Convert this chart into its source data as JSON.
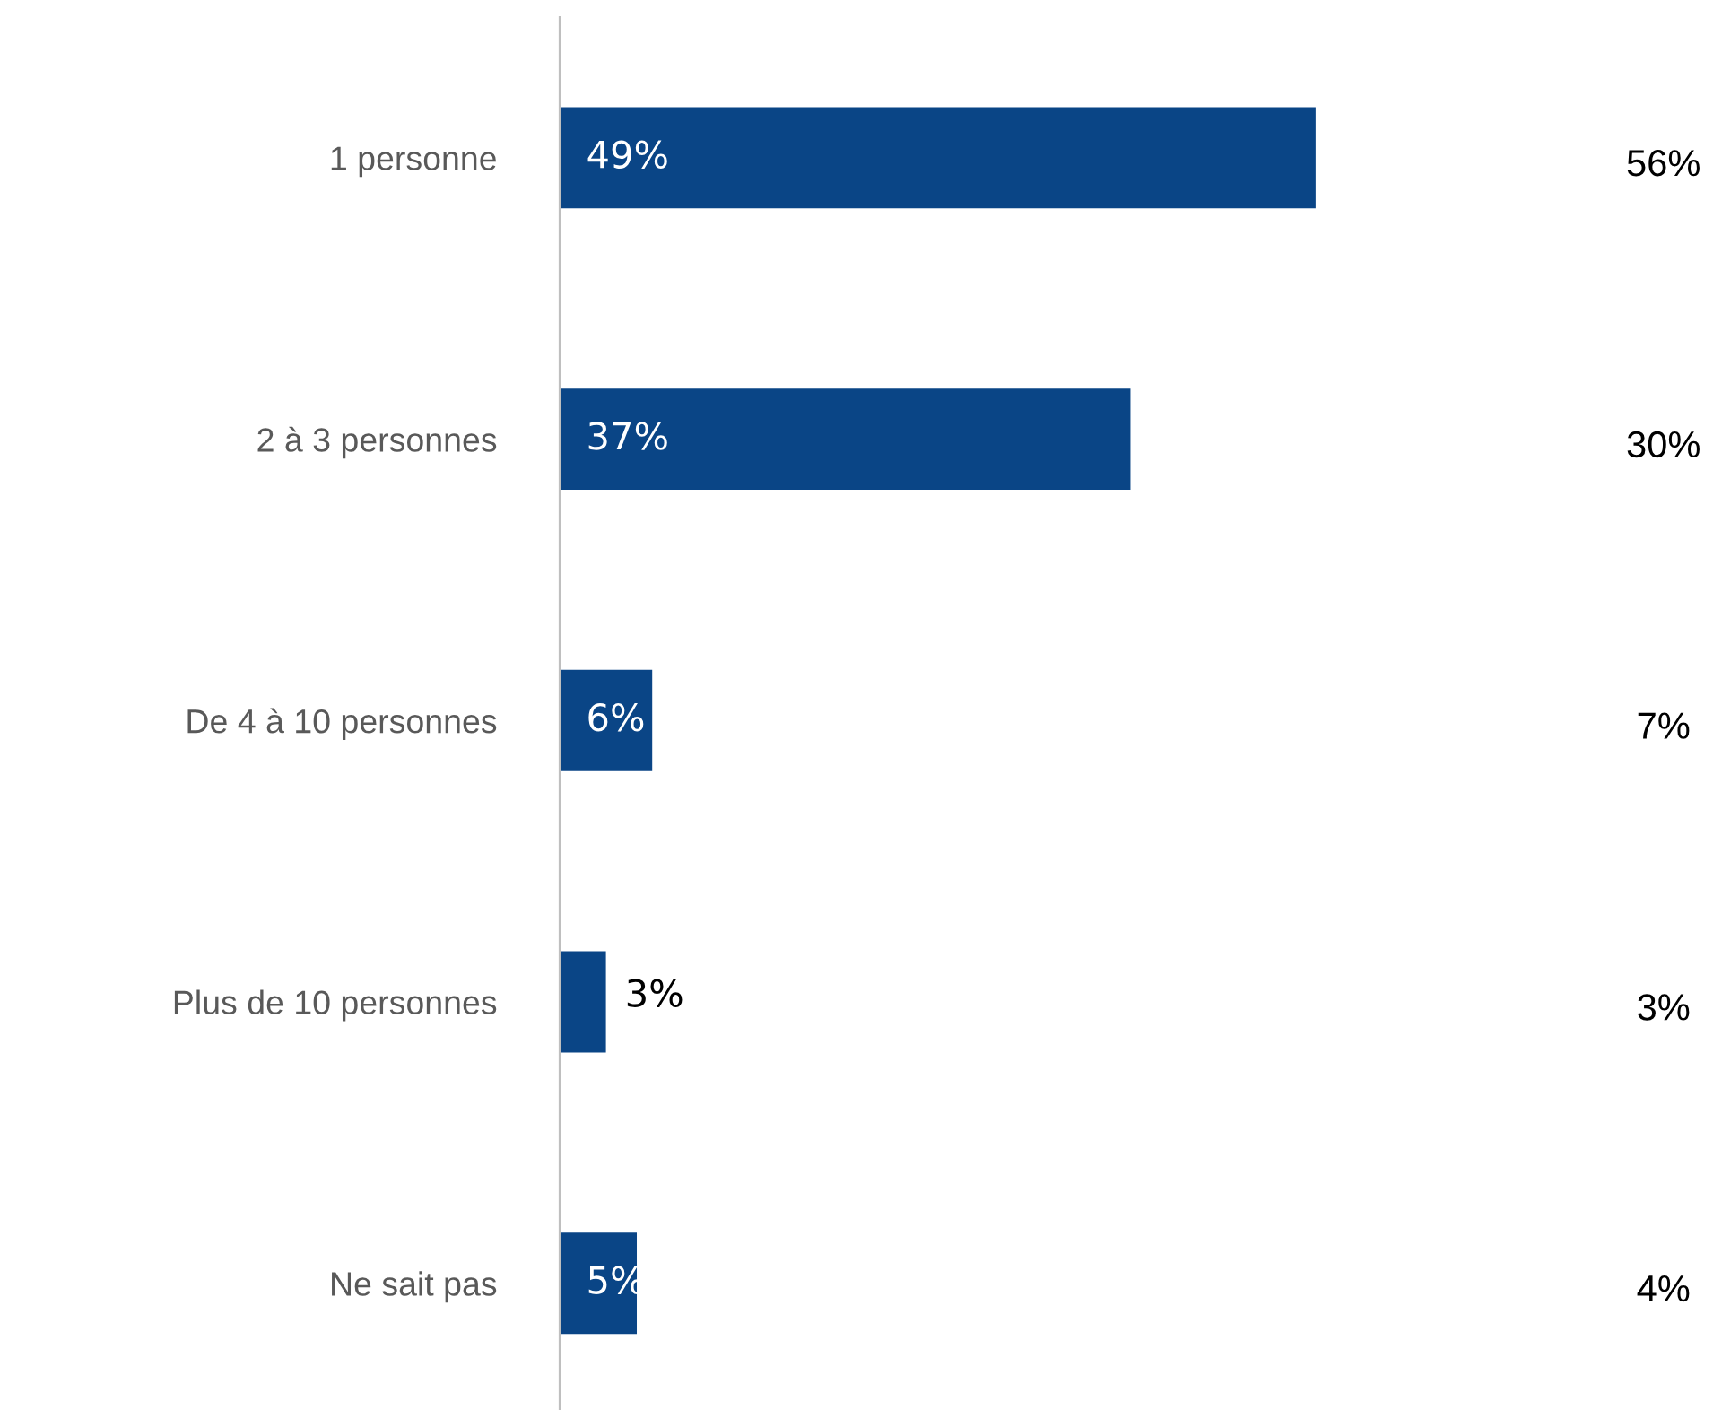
{
  "chart_data": {
    "type": "bar",
    "orientation": "horizontal",
    "categories": [
      "1 personne",
      "2 à 3 personnes",
      "De 4 à 10 personnes",
      "Plus de 10 personnes",
      "Ne sait pas"
    ],
    "values": [
      49,
      37,
      6,
      3,
      5
    ],
    "color": "#0a4586",
    "value_labels": [
      "49%",
      "37%",
      "6%",
      "3%",
      "5%"
    ],
    "annotations": [
      "56%",
      "30%",
      "7%",
      "3%",
      "4%"
    ],
    "grid": false,
    "legend": false
  }
}
